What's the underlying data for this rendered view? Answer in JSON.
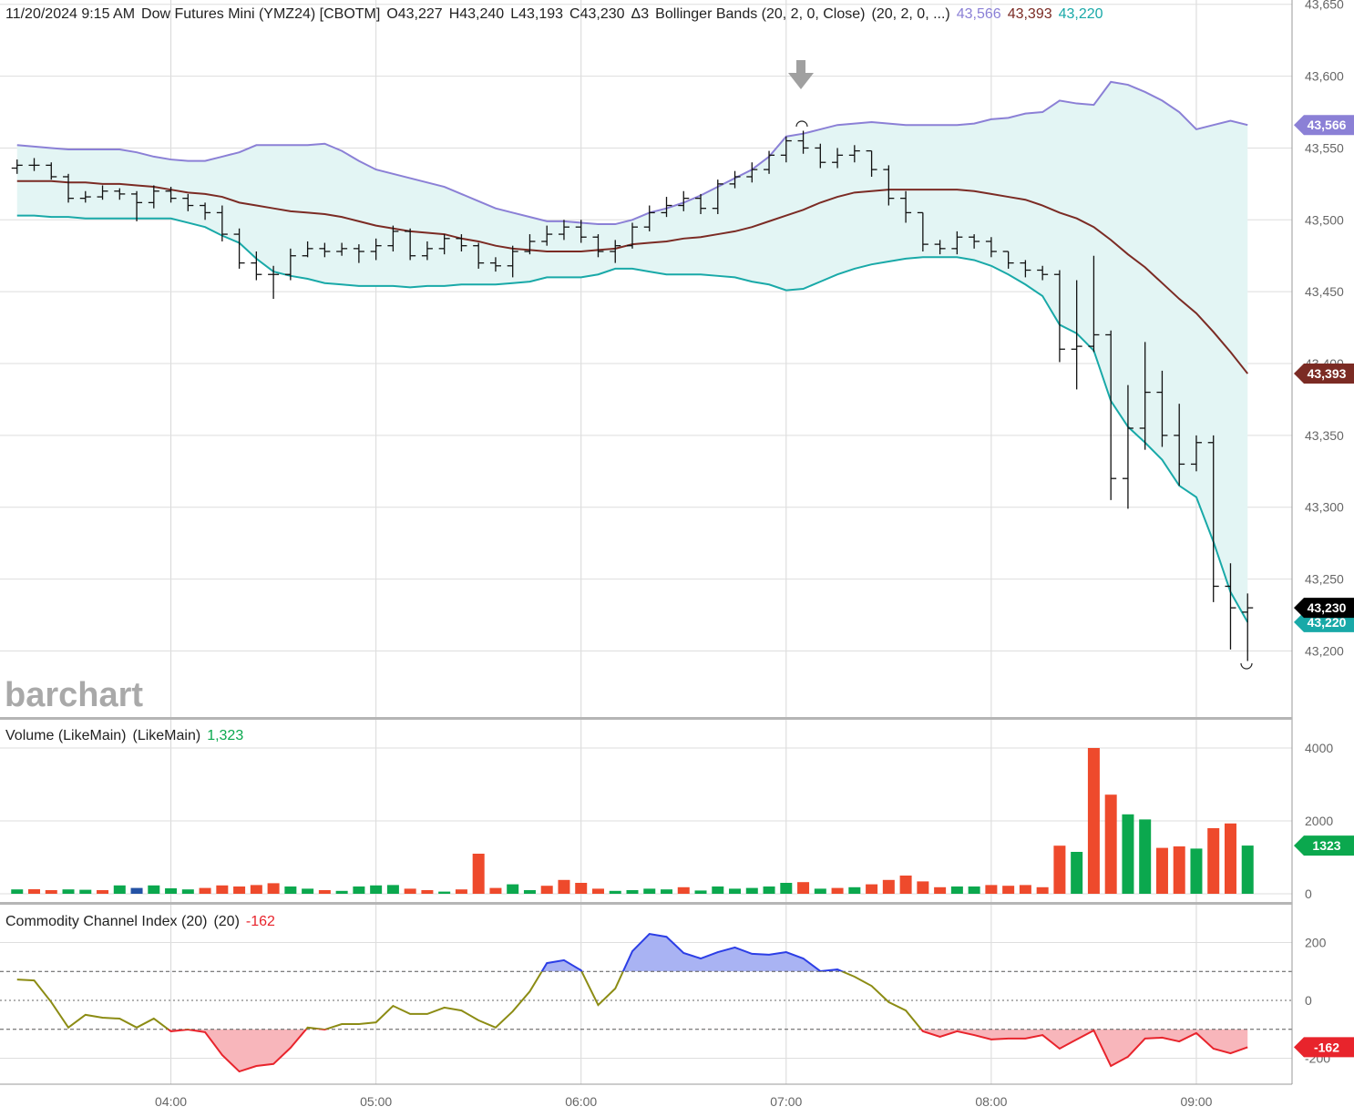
{
  "chart_data": [
    {
      "type": "ohlc",
      "date": "11/20/2024 9:15 AM",
      "title": "Dow Futures Mini (YMZ24) [CBOTM]",
      "ohlc_labels": [
        "O43,227",
        "H43,240",
        "L43,193",
        "C43,230"
      ],
      "change": "Δ3",
      "study": "Bollinger Bands (20, 2, 0, Close)",
      "study_params": "(20, 2, 0, ...)",
      "watermark": "barchart",
      "x": [
        195,
        200,
        205,
        210,
        215,
        220,
        225,
        230,
        235,
        240,
        245,
        250,
        255,
        260,
        265,
        270,
        275,
        280,
        285,
        290,
        295,
        300,
        305,
        310,
        315,
        320,
        325,
        330,
        335,
        340,
        345,
        350,
        355,
        360,
        365,
        370,
        375,
        380,
        385,
        390,
        395,
        400,
        405,
        410,
        415,
        420,
        425,
        430,
        435,
        440,
        445,
        450,
        455,
        460,
        465,
        470,
        475,
        480,
        485,
        490,
        495,
        500,
        505,
        510,
        515,
        520,
        525,
        530,
        535,
        540,
        545,
        550,
        555
      ],
      "open": [
        43536,
        43538,
        43538,
        43530,
        43515,
        43516,
        43520,
        43518,
        43512,
        43520,
        43515,
        43510,
        43505,
        43490,
        43470,
        43462,
        43462,
        43475,
        43480,
        43478,
        43480,
        43478,
        43482,
        43492,
        43475,
        43480,
        43487,
        43482,
        43470,
        43468,
        43478,
        43485,
        43490,
        43495,
        43488,
        43478,
        43482,
        43495,
        43505,
        43510,
        43515,
        43508,
        43525,
        43530,
        43535,
        43545,
        43555,
        43550,
        43540,
        43545,
        43548,
        43535,
        43515,
        43505,
        43483,
        43480,
        43488,
        43485,
        43478,
        43470,
        43465,
        43462,
        43410,
        43412,
        43420,
        43320,
        43355,
        43380,
        43350,
        43330,
        43345,
        43245,
        43227
      ],
      "high": [
        43542,
        43543,
        43540,
        43532,
        43520,
        43524,
        43522,
        43520,
        43524,
        43523,
        43518,
        43512,
        43510,
        43494,
        43478,
        43468,
        43480,
        43485,
        43484,
        43484,
        43483,
        43487,
        43496,
        43494,
        43485,
        43490,
        43490,
        43484,
        43474,
        43482,
        43490,
        43496,
        43500,
        43500,
        43490,
        43486,
        43498,
        43510,
        43516,
        43520,
        43518,
        43528,
        43534,
        43540,
        43548,
        43558,
        43562,
        43553,
        43550,
        43552,
        43548,
        43538,
        43520,
        43505,
        43486,
        43492,
        43490,
        43488,
        43478,
        43472,
        43468,
        43465,
        43458,
        43475,
        43423,
        43385,
        43415,
        43395,
        43372,
        43350,
        43350,
        43261,
        43240
      ],
      "low": [
        43532,
        43534,
        43528,
        43512,
        43512,
        43514,
        43514,
        43499,
        43508,
        43512,
        43506,
        43500,
        43485,
        43466,
        43458,
        43445,
        43458,
        43474,
        43474,
        43475,
        43470,
        43472,
        43478,
        43472,
        43472,
        43476,
        43478,
        43466,
        43464,
        43460,
        43476,
        43482,
        43486,
        43484,
        43474,
        43470,
        43480,
        43492,
        43502,
        43506,
        43504,
        43504,
        43522,
        43526,
        43532,
        43540,
        43546,
        43536,
        43536,
        43540,
        43530,
        43510,
        43498,
        43478,
        43476,
        43476,
        43480,
        43474,
        43466,
        43460,
        43458,
        43401,
        43382,
        43408,
        43305,
        43299,
        43340,
        43342,
        43315,
        43325,
        43234,
        43201,
        43193
      ],
      "close": [
        43538,
        43538,
        43530,
        43515,
        43516,
        43520,
        43518,
        43512,
        43520,
        43515,
        43510,
        43505,
        43490,
        43470,
        43462,
        43462,
        43475,
        43480,
        43478,
        43480,
        43478,
        43482,
        43492,
        43475,
        43480,
        43487,
        43482,
        43470,
        43468,
        43478,
        43485,
        43490,
        43495,
        43488,
        43478,
        43482,
        43495,
        43505,
        43510,
        43515,
        43508,
        43525,
        43530,
        43535,
        43545,
        43555,
        43550,
        43540,
        43545,
        43548,
        43535,
        43515,
        43505,
        43483,
        43480,
        43488,
        43485,
        43478,
        43470,
        43465,
        43462,
        43410,
        43412,
        43420,
        43320,
        43355,
        43380,
        43350,
        43330,
        43345,
        43245,
        43230,
        43230
      ],
      "bar_color": "#111111",
      "last_label": "43,230",
      "last_color": "#000000",
      "band_fill": "#e3f5f4",
      "series": [
        {
          "color": "#8b80d6",
          "badge": "43,566",
          "values": [
            43552,
            43551,
            43550,
            43549,
            43549,
            43549,
            43549,
            43547,
            43544,
            43542,
            43541,
            43541,
            43544,
            43547,
            43552,
            43552,
            43552,
            43552,
            43553,
            43548,
            43541,
            43535,
            43532,
            43529,
            43526,
            43523,
            43518,
            43513,
            43508,
            43505,
            43502,
            43499,
            43499,
            43498,
            43497,
            43497,
            43500,
            43505,
            43508,
            43512,
            43517,
            43523,
            43529,
            43535,
            43544,
            43558,
            43560,
            43563,
            43566,
            43567,
            43568,
            43567,
            43566,
            43566,
            43566,
            43566,
            43567,
            43570,
            43571,
            43574,
            43575,
            43583,
            43581,
            43580,
            43596,
            43594,
            43589,
            43583,
            43575,
            43563,
            43566,
            43569,
            43566
          ]
        },
        {
          "color": "#7b2b24",
          "badge": "43,393",
          "values": [
            43527,
            43527,
            43527,
            43526,
            43526,
            43525,
            43525,
            43524,
            43523,
            43521,
            43519,
            43518,
            43516,
            43512,
            43510,
            43508,
            43506,
            43505,
            43504,
            43502,
            43499,
            43496,
            43494,
            43492,
            43491,
            43490,
            43487,
            43485,
            43482,
            43480,
            43479,
            43478,
            43478,
            43478,
            43479,
            43480,
            43483,
            43484,
            43485,
            43487,
            43488,
            43490,
            43492,
            43495,
            43499,
            43503,
            43507,
            43512,
            43516,
            43519,
            43520,
            43521,
            43521,
            43521,
            43521,
            43521,
            43520,
            43518,
            43516,
            43514,
            43510,
            43505,
            43501,
            43495,
            43486,
            43476,
            43467,
            43456,
            43445,
            43435,
            43422,
            43408,
            43393
          ]
        },
        {
          "color": "#19a9a8",
          "badge": "43,220",
          "values": [
            43503,
            43503,
            43502,
            43502,
            43501,
            43501,
            43501,
            43501,
            43501,
            43501,
            43498,
            43495,
            43489,
            43484,
            43473,
            43464,
            43461,
            43459,
            43456,
            43455,
            43454,
            43454,
            43454,
            43453,
            43454,
            43454,
            43455,
            43455,
            43455,
            43456,
            43457,
            43460,
            43460,
            43460,
            43462,
            43466,
            43466,
            43464,
            43462,
            43462,
            43462,
            43461,
            43460,
            43457,
            43455,
            43451,
            43452,
            43457,
            43462,
            43466,
            43469,
            43471,
            43473,
            43474,
            43474,
            43474,
            43472,
            43468,
            43462,
            43455,
            43447,
            43427,
            43421,
            43409,
            43374,
            43356,
            43345,
            43333,
            43315,
            43307,
            43276,
            43241,
            43220
          ]
        }
      ],
      "xlim": [
        190,
        568
      ],
      "xticks": [
        {
          "value": 240,
          "label": "04:00"
        },
        {
          "value": 300,
          "label": "05:00"
        },
        {
          "value": 360,
          "label": "06:00"
        },
        {
          "value": 420,
          "label": "07:00"
        },
        {
          "value": 480,
          "label": "08:00"
        },
        {
          "value": 540,
          "label": "09:00"
        }
      ],
      "ylim": [
        43154,
        43653
      ],
      "yticks": [
        {
          "value": 43200,
          "label": "43,200"
        },
        {
          "value": 43250,
          "label": "43,250"
        },
        {
          "value": 43300,
          "label": "43,300"
        },
        {
          "value": 43350,
          "label": "43,350"
        },
        {
          "value": 43400,
          "label": "43,400"
        },
        {
          "value": 43450,
          "label": "43,450"
        },
        {
          "value": 43500,
          "label": "43,500"
        },
        {
          "value": 43550,
          "label": "43,550"
        },
        {
          "value": 43600,
          "label": "43,600"
        },
        {
          "value": 43650,
          "label": "43,650"
        }
      ],
      "grid": true
    },
    {
      "type": "bar",
      "title": "Volume (LikeMain)",
      "study_params": "(LikeMain)",
      "last_label": "1,323",
      "label_color": "#0ba84e",
      "badge": "1323",
      "values": [
        120,
        125,
        100,
        120,
        110,
        100,
        230,
        160,
        230,
        150,
        120,
        160,
        230,
        200,
        240,
        290,
        200,
        140,
        100,
        80,
        200,
        230,
        240,
        140,
        100,
        60,
        120,
        1100,
        160,
        260,
        100,
        220,
        380,
        300,
        140,
        80,
        100,
        140,
        120,
        180,
        90,
        200,
        140,
        160,
        200,
        300,
        320,
        140,
        160,
        180,
        260,
        380,
        500,
        340,
        180,
        200,
        200,
        240,
        220,
        240,
        180,
        1320,
        1150,
        4000,
        2720,
        2180,
        2040,
        1260,
        1300,
        1240,
        1800,
        1930,
        1323
      ],
      "colors": [
        "#0ba84e",
        "#ee4a2c",
        "#ee4a2c",
        "#0ba84e",
        "#0ba84e",
        "#ee4a2c",
        "#0ba84e",
        "#2553a5",
        "#0ba84e",
        "#0ba84e",
        "#0ba84e",
        "#ee4a2c",
        "#ee4a2c",
        "#ee4a2c",
        "#ee4a2c",
        "#ee4a2c",
        "#0ba84e",
        "#0ba84e",
        "#ee4a2c",
        "#0ba84e",
        "#0ba84e",
        "#0ba84e",
        "#0ba84e",
        "#ee4a2c",
        "#ee4a2c",
        "#0ba84e",
        "#ee4a2c",
        "#ee4a2c",
        "#ee4a2c",
        "#0ba84e",
        "#0ba84e",
        "#ee4a2c",
        "#ee4a2c",
        "#ee4a2c",
        "#ee4a2c",
        "#0ba84e",
        "#0ba84e",
        "#0ba84e",
        "#0ba84e",
        "#ee4a2c",
        "#0ba84e",
        "#0ba84e",
        "#0ba84e",
        "#0ba84e",
        "#0ba84e",
        "#0ba84e",
        "#ee4a2c",
        "#0ba84e",
        "#ee4a2c",
        "#0ba84e",
        "#ee4a2c",
        "#ee4a2c",
        "#ee4a2c",
        "#ee4a2c",
        "#ee4a2c",
        "#0ba84e",
        "#0ba84e",
        "#ee4a2c",
        "#ee4a2c",
        "#ee4a2c",
        "#ee4a2c",
        "#ee4a2c",
        "#0ba84e",
        "#ee4a2c",
        "#ee4a2c",
        "#0ba84e",
        "#0ba84e",
        "#ee4a2c",
        "#ee4a2c",
        "#0ba84e",
        "#ee4a2c",
        "#ee4a2c",
        "#0ba84e"
      ],
      "ylim": [
        -225,
        4775
      ],
      "yticks": [
        0,
        2000,
        4000
      ],
      "grid": true
    },
    {
      "type": "line",
      "title": "Commodity Channel Index (20)",
      "study_params": "(20)",
      "last_label": "-162",
      "values": [
        72,
        69,
        -6,
        -94,
        -50,
        -60,
        -63,
        -94,
        -63,
        -107,
        -101,
        -110,
        -189,
        -246,
        -227,
        -220,
        -164,
        -94,
        -101,
        -82,
        -82,
        -76,
        -19,
        -47,
        -47,
        -25,
        -35,
        -69,
        -94,
        -38,
        31,
        129,
        139,
        104,
        -16,
        41,
        170,
        230,
        220,
        164,
        145,
        167,
        183,
        161,
        158,
        167,
        145,
        101,
        107,
        82,
        50,
        -6,
        -35,
        -107,
        -126,
        -107,
        -120,
        -135,
        -132,
        -132,
        -120,
        -167,
        -135,
        -104,
        -227,
        -195,
        -132,
        -129,
        -142,
        -113,
        -167,
        -183,
        -162
      ],
      "color": "#8c8c14",
      "above_color": "#2c3ee6",
      "above_fill": "#a9b3f3",
      "below_color": "#e8242c",
      "below_fill": "#f8b6bb",
      "levels": [
        100,
        -100
      ],
      "ylim": [
        -290,
        331
      ],
      "yticks": [
        -200,
        0,
        200
      ],
      "grid": true
    }
  ]
}
